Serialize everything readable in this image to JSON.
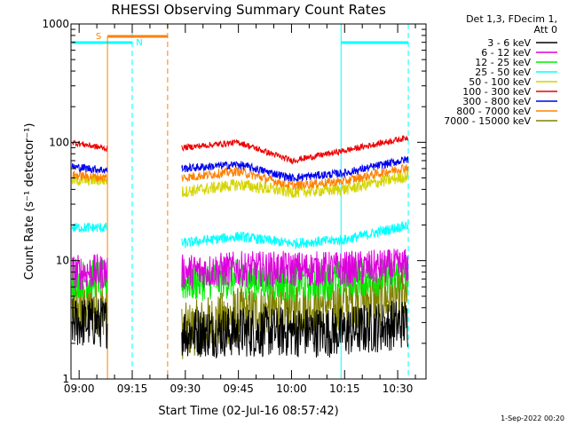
{
  "chart_data": {
    "type": "line",
    "title": "RHESSI Observing Summary Count Rates",
    "xlabel": "Start Time (02-Jul-16 08:57:42)",
    "ylabel": "Count Rate (s⁻¹ detector⁻¹)",
    "y_scale": "log",
    "ylim": [
      1,
      1000
    ],
    "xlim": [
      "08:57:42",
      "10:38:00"
    ],
    "x_ticks": [
      "09:00",
      "09:15",
      "09:30",
      "09:45",
      "10:00",
      "10:15",
      "10:30"
    ],
    "y_ticks": [
      "1",
      "10",
      "100",
      "1000"
    ],
    "legend_header": [
      "Det 1,3, FDecim 1,",
      "Att 0"
    ],
    "legend_position": "right",
    "data_gap": [
      "09:08",
      "09:29"
    ],
    "series": [
      {
        "name": "3 - 6 keV",
        "color": "#000000",
        "x": [
          "08:58",
          "09:08",
          "09:29",
          "09:45",
          "10:00",
          "10:15",
          "10:33"
        ],
        "values": [
          3,
          3,
          2.5,
          2.5,
          2.5,
          2.5,
          3
        ]
      },
      {
        "name": "6 - 12 keV",
        "color": "#dd00dd",
        "x": [
          "08:58",
          "09:08",
          "09:29",
          "09:45",
          "10:00",
          "10:15",
          "10:33"
        ],
        "values": [
          8,
          8,
          8,
          8.5,
          8.5,
          8.5,
          9
        ]
      },
      {
        "name": "12 - 25 keV",
        "color": "#00ee00",
        "x": [
          "08:58",
          "09:08",
          "09:29",
          "09:45",
          "10:00",
          "10:15",
          "10:33"
        ],
        "values": [
          7,
          7,
          6.5,
          7,
          6.5,
          7,
          7.5
        ]
      },
      {
        "name": "25 - 50 keV",
        "color": "#00ffff",
        "x": [
          "08:58",
          "09:08",
          "09:29",
          "09:45",
          "10:00",
          "10:15",
          "10:33"
        ],
        "values": [
          19,
          19,
          14,
          16,
          14,
          15,
          20
        ]
      },
      {
        "name": "50 - 100 keV",
        "color": "#d4d400",
        "x": [
          "08:58",
          "09:08",
          "09:29",
          "09:45",
          "10:00",
          "10:15",
          "10:33"
        ],
        "values": [
          48,
          48,
          38,
          44,
          38,
          40,
          52
        ]
      },
      {
        "name": "100 - 300 keV",
        "color": "#ee0000",
        "x": [
          "08:58",
          "09:08",
          "09:29",
          "09:45",
          "10:00",
          "10:15",
          "10:33"
        ],
        "values": [
          100,
          88,
          90,
          100,
          70,
          85,
          110
        ]
      },
      {
        "name": "300 - 800 keV",
        "color": "#0000ee",
        "x": [
          "08:58",
          "09:08",
          "09:29",
          "09:45",
          "10:00",
          "10:15",
          "10:33"
        ],
        "values": [
          62,
          58,
          60,
          65,
          50,
          55,
          72
        ]
      },
      {
        "name": "800 - 7000 keV",
        "color": "#ff8000",
        "x": [
          "08:58",
          "09:08",
          "09:29",
          "09:45",
          "10:00",
          "10:15",
          "10:33"
        ],
        "values": [
          53,
          50,
          50,
          57,
          43,
          47,
          62
        ]
      },
      {
        "name": "7000 - 15000 keV",
        "color": "#808000",
        "x": [
          "08:58",
          "09:08",
          "09:29",
          "09:45",
          "10:00",
          "10:15",
          "10:33"
        ],
        "values": [
          4,
          4,
          2.5,
          3.5,
          4,
          4.5,
          5
        ]
      }
    ],
    "markers": {
      "saa": {
        "label": "S",
        "color": "#ff8000",
        "solid_x": "09:08",
        "dashed_x": "09:25"
      },
      "night": {
        "label": "N",
        "color": "#00ffff",
        "start": "09:15",
        "end": "10:14",
        "end2": "10:33"
      }
    },
    "timestamp": "1-Sep-2022 00:20"
  }
}
